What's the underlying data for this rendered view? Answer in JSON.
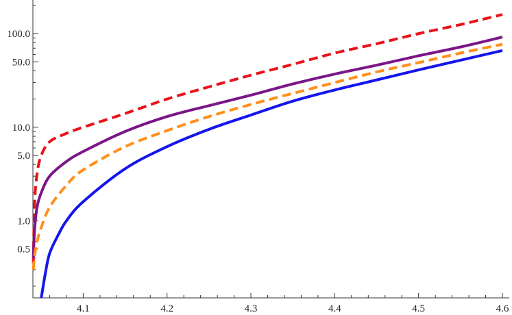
{
  "chart_data": {
    "type": "line",
    "title": "",
    "xlabel": "",
    "ylabel": "",
    "x_scale": "linear",
    "y_scale": "log",
    "xlim": [
      4.04,
      4.6
    ],
    "ylim": [
      0.15,
      200
    ],
    "grid": false,
    "legend": "none",
    "x_ticks": [
      {
        "value": 4.1,
        "label": "4.1"
      },
      {
        "value": 4.2,
        "label": "4.2"
      },
      {
        "value": 4.3,
        "label": "4.3"
      },
      {
        "value": 4.4,
        "label": "4.4"
      },
      {
        "value": 4.5,
        "label": "4.5"
      },
      {
        "value": 4.6,
        "label": "4.6"
      }
    ],
    "y_ticks": [
      {
        "value": 0.5,
        "label": "0.5"
      },
      {
        "value": 1.0,
        "label": "1.0"
      },
      {
        "value": 5.0,
        "label": "5.0"
      },
      {
        "value": 10.0,
        "label": "10.0"
      },
      {
        "value": 50.0,
        "label": "50.0"
      },
      {
        "value": 100.0,
        "label": "100.0"
      }
    ],
    "series": [
      {
        "color": "#e8131a",
        "style": "dashed",
        "x": [
          4.0405,
          4.042,
          4.045,
          4.05,
          4.06,
          4.08,
          4.1,
          4.15,
          4.2,
          4.25,
          4.3,
          4.35,
          4.4,
          4.45,
          4.5,
          4.55,
          4.6
        ],
        "y": [
          0.35,
          1.5,
          3.2,
          5.0,
          7.0,
          8.6,
          10.0,
          14.0,
          20.0,
          27.0,
          36.0,
          47.0,
          62.0,
          78.0,
          100.0,
          125.0,
          160.0
        ]
      },
      {
        "color": "#7b1688",
        "style": "solid",
        "x": [
          4.0405,
          4.042,
          4.045,
          4.05,
          4.06,
          4.08,
          4.1,
          4.15,
          4.2,
          4.25,
          4.3,
          4.35,
          4.4,
          4.45,
          4.5,
          4.55,
          4.6
        ],
        "y": [
          0.4,
          0.8,
          1.4,
          2.0,
          3.0,
          4.3,
          5.5,
          9.0,
          13.0,
          17.0,
          22.0,
          29.0,
          37.0,
          46.0,
          58.0,
          72.0,
          92.0
        ]
      },
      {
        "color": "#ff8f1c",
        "style": "dashed",
        "x": [
          4.0405,
          4.042,
          4.045,
          4.05,
          4.06,
          4.08,
          4.1,
          4.15,
          4.2,
          4.25,
          4.3,
          4.35,
          4.4,
          4.45,
          4.5,
          4.55,
          4.6
        ],
        "y": [
          0.3,
          0.42,
          0.6,
          0.85,
          1.4,
          2.4,
          3.5,
          6.2,
          9.2,
          13.0,
          17.5,
          23.0,
          30.0,
          39.0,
          49.0,
          62.0,
          77.0
        ]
      },
      {
        "color": "#1515ee",
        "style": "solid",
        "x": [
          4.05,
          4.055,
          4.06,
          4.07,
          4.08,
          4.1,
          4.15,
          4.2,
          4.25,
          4.3,
          4.35,
          4.4,
          4.45,
          4.5,
          4.55,
          4.6
        ],
        "y": [
          0.15,
          0.28,
          0.45,
          0.7,
          1.0,
          1.6,
          3.6,
          6.2,
          9.5,
          13.5,
          19.0,
          25.0,
          32.0,
          41.0,
          52.0,
          66.0
        ]
      }
    ]
  }
}
